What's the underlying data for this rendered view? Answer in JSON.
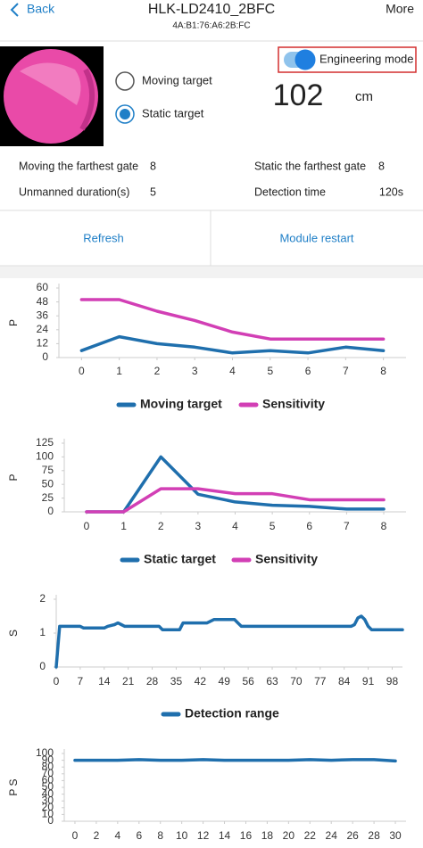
{
  "header": {
    "back": "Back",
    "title": "HLK-LD2410_2BFC",
    "subtitle": "4A:B1:76:A6:2B:FC",
    "more": "More"
  },
  "status": {
    "options": [
      "Moving target",
      "Static target"
    ],
    "selected": 1,
    "engineering_mode": {
      "label": "Engineering mode",
      "on": true
    },
    "distance": {
      "value": 102,
      "unit": "cm"
    }
  },
  "info": [
    {
      "label": "Moving the farthest gate",
      "value": 8
    },
    {
      "label": "Static the farthest gate",
      "value": 8
    },
    {
      "label": "Unmanned duration(s)",
      "value": 5
    },
    {
      "label": "Detection time",
      "value": "120s"
    }
  ],
  "buttons": [
    "Refresh",
    "Module restart"
  ],
  "chart_data": [
    {
      "type": "line",
      "y_label": "P",
      "x": [
        0,
        1,
        2,
        3,
        4,
        5,
        6,
        7,
        8
      ],
      "xlim": [
        -0.6,
        8.6
      ],
      "xticks": [
        0,
        1,
        2,
        3,
        4,
        5,
        6,
        7,
        8
      ],
      "ylim": [
        0,
        60
      ],
      "yticks": [
        0,
        12,
        24,
        36,
        48,
        60
      ],
      "series": [
        {
          "name": "Moving target",
          "color": "#1f6fad",
          "values": [
            6,
            18,
            12,
            9,
            4,
            6,
            4,
            9,
            6
          ]
        },
        {
          "name": "Sensitivity",
          "color": "#d23fb5",
          "values": [
            50,
            50,
            40,
            32,
            22,
            16,
            16,
            16,
            16
          ]
        }
      ]
    },
    {
      "type": "line",
      "y_label": "P",
      "x": [
        0,
        1,
        2,
        3,
        4,
        5,
        6,
        7,
        8
      ],
      "xlim": [
        -0.6,
        8.6
      ],
      "xticks": [
        0,
        1,
        2,
        3,
        4,
        5,
        6,
        7,
        8
      ],
      "ylim": [
        0,
        125
      ],
      "yticks": [
        0,
        25,
        50,
        75,
        100,
        125
      ],
      "series": [
        {
          "name": "Static target",
          "color": "#1f6fad",
          "values": [
            0,
            0,
            100,
            32,
            18,
            12,
            10,
            5,
            5
          ]
        },
        {
          "name": "Sensitivity",
          "color": "#d23fb5",
          "values": [
            0,
            0,
            42,
            42,
            33,
            33,
            22,
            22,
            22
          ]
        }
      ]
    },
    {
      "type": "line",
      "y_label": "S",
      "x": [
        0,
        1,
        2,
        7,
        8,
        14,
        15,
        17,
        18,
        19,
        20,
        25,
        30,
        31,
        36,
        37,
        44,
        45,
        46,
        52,
        53,
        54,
        70,
        86,
        87,
        88,
        89,
        90,
        91,
        92,
        95,
        101
      ],
      "xlim": [
        0,
        101
      ],
      "xticks": [
        0,
        7,
        14,
        21,
        28,
        35,
        42,
        49,
        56,
        63,
        70,
        77,
        84,
        91,
        98
      ],
      "ylim": [
        0,
        2
      ],
      "yticks": [
        0,
        1,
        2
      ],
      "series": [
        {
          "name": "Detection range",
          "color": "#1f6fad",
          "values": [
            0,
            1.2,
            1.2,
            1.2,
            1.15,
            1.15,
            1.2,
            1.25,
            1.3,
            1.25,
            1.2,
            1.2,
            1.2,
            1.1,
            1.1,
            1.3,
            1.3,
            1.35,
            1.4,
            1.4,
            1.3,
            1.2,
            1.2,
            1.2,
            1.25,
            1.45,
            1.5,
            1.4,
            1.2,
            1.1,
            1.1,
            1.1
          ]
        }
      ]
    },
    {
      "type": "line",
      "y_label": "P S",
      "x": [
        0,
        2,
        4,
        6,
        8,
        10,
        12,
        14,
        16,
        18,
        20,
        22,
        24,
        26,
        28,
        30
      ],
      "xlim": [
        -1,
        31
      ],
      "xticks": [
        0,
        2,
        4,
        6,
        8,
        10,
        12,
        14,
        16,
        18,
        20,
        22,
        24,
        26,
        28,
        30
      ],
      "ylim": [
        0,
        100
      ],
      "yticks": [
        0,
        10,
        20,
        30,
        40,
        50,
        60,
        70,
        80,
        90,
        100
      ],
      "series": [
        {
          "color": "#1f6fad",
          "values": [
            90,
            90,
            90,
            91,
            90,
            90,
            91,
            90,
            90,
            90,
            90,
            91,
            90,
            91,
            91,
            89
          ]
        }
      ]
    }
  ]
}
